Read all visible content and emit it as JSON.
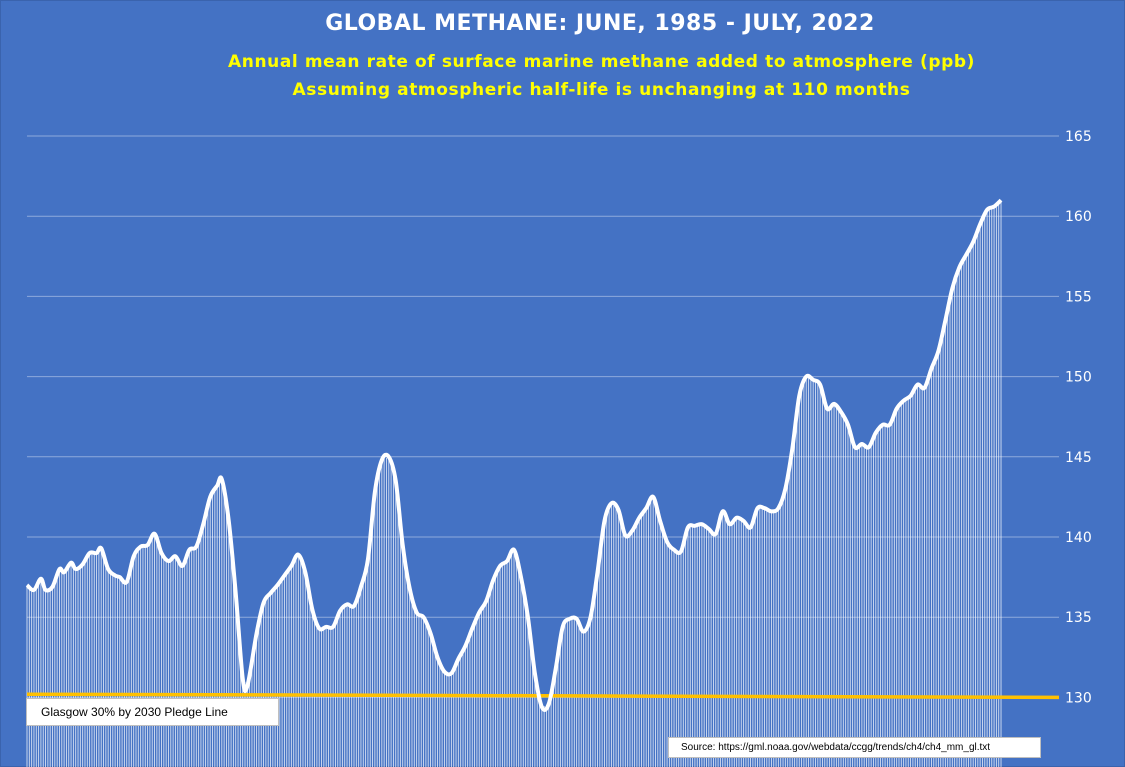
{
  "chart_data": {
    "type": "area",
    "title": "GLOBAL METHANE: JUNE, 1985 - JULY, 2022",
    "subtitle": "Annual mean rate of surface marine methane added to atmosphere (ppb)",
    "subtitle2": "Assuming atmospheric half-life is unchanging at 110 months",
    "xlabel": "",
    "ylabel": "",
    "x_start": "1985-06",
    "x_end": "2022-07",
    "ylim": [
      125,
      165
    ],
    "yticks": [
      130,
      135,
      140,
      145,
      150,
      155,
      160,
      165
    ],
    "grid": true,
    "series": [
      {
        "name": "",
        "color": "#ffffff",
        "points": [
          [
            "1985-06",
            137.0
          ],
          [
            "1985-09",
            136.7
          ],
          [
            "1985-12",
            137.4
          ],
          [
            "1986-02",
            136.7
          ],
          [
            "1986-05",
            136.9
          ],
          [
            "1986-08",
            138.0
          ],
          [
            "1986-10",
            137.8
          ],
          [
            "1987-01",
            138.4
          ],
          [
            "1987-03",
            138.0
          ],
          [
            "1987-06",
            138.3
          ],
          [
            "1987-09",
            139.0
          ],
          [
            "1987-12",
            139.0
          ],
          [
            "1988-02",
            139.3
          ],
          [
            "1988-05",
            138.0
          ],
          [
            "1988-08",
            137.6
          ],
          [
            "1988-10",
            137.5
          ],
          [
            "1989-01",
            137.2
          ],
          [
            "1989-04",
            138.8
          ],
          [
            "1989-07",
            139.4
          ],
          [
            "1989-10",
            139.5
          ],
          [
            "1990-01",
            140.2
          ],
          [
            "1990-04",
            139.0
          ],
          [
            "1990-07",
            138.5
          ],
          [
            "1990-10",
            138.8
          ],
          [
            "1991-01",
            138.2
          ],
          [
            "1991-04",
            139.2
          ],
          [
            "1991-07",
            139.4
          ],
          [
            "1991-10",
            140.8
          ],
          [
            "1992-01",
            142.5
          ],
          [
            "1992-04",
            143.2
          ],
          [
            "1992-06",
            143.6
          ],
          [
            "1992-09",
            141.0
          ],
          [
            "1992-12",
            136.5
          ],
          [
            "1993-03",
            131.2
          ],
          [
            "1993-05",
            130.7
          ],
          [
            "1993-09",
            134.0
          ],
          [
            "1993-12",
            135.9
          ],
          [
            "1994-03",
            136.5
          ],
          [
            "1994-06",
            137.0
          ],
          [
            "1994-09",
            137.6
          ],
          [
            "1994-12",
            138.2
          ],
          [
            "1995-03",
            138.9
          ],
          [
            "1995-06",
            137.8
          ],
          [
            "1995-09",
            135.5
          ],
          [
            "1995-12",
            134.3
          ],
          [
            "1996-03",
            134.4
          ],
          [
            "1996-06",
            134.4
          ],
          [
            "1996-09",
            135.4
          ],
          [
            "1996-12",
            135.8
          ],
          [
            "1997-03",
            135.7
          ],
          [
            "1997-06",
            136.9
          ],
          [
            "1997-09",
            138.6
          ],
          [
            "1997-12",
            142.8
          ],
          [
            "1998-03",
            144.8
          ],
          [
            "1998-06",
            145.0
          ],
          [
            "1998-09",
            143.5
          ],
          [
            "1998-12",
            139.5
          ],
          [
            "1999-03",
            136.8
          ],
          [
            "1999-06",
            135.3
          ],
          [
            "1999-09",
            135.0
          ],
          [
            "1999-12",
            134.0
          ],
          [
            "2000-03",
            132.5
          ],
          [
            "2000-06",
            131.6
          ],
          [
            "2000-09",
            131.5
          ],
          [
            "2000-12",
            132.4
          ],
          [
            "2001-03",
            133.2
          ],
          [
            "2001-06",
            134.3
          ],
          [
            "2001-09",
            135.3
          ],
          [
            "2001-12",
            136.0
          ],
          [
            "2002-03",
            137.3
          ],
          [
            "2002-06",
            138.2
          ],
          [
            "2002-09",
            138.5
          ],
          [
            "2002-12",
            139.2
          ],
          [
            "2003-03",
            137.5
          ],
          [
            "2003-06",
            135.0
          ],
          [
            "2003-09",
            131.5
          ],
          [
            "2003-12",
            129.4
          ],
          [
            "2004-03",
            129.6
          ],
          [
            "2004-06",
            131.8
          ],
          [
            "2004-09",
            134.4
          ],
          [
            "2004-12",
            134.9
          ],
          [
            "2005-03",
            134.9
          ],
          [
            "2005-06",
            134.1
          ],
          [
            "2005-09",
            135.0
          ],
          [
            "2005-12",
            137.8
          ],
          [
            "2006-03",
            141.0
          ],
          [
            "2006-06",
            142.1
          ],
          [
            "2006-09",
            141.7
          ],
          [
            "2006-12",
            140.1
          ],
          [
            "2007-03",
            140.4
          ],
          [
            "2007-06",
            141.2
          ],
          [
            "2007-09",
            141.8
          ],
          [
            "2007-12",
            142.5
          ],
          [
            "2008-03",
            141.0
          ],
          [
            "2008-06",
            139.7
          ],
          [
            "2008-09",
            139.2
          ],
          [
            "2008-12",
            139.1
          ],
          [
            "2009-03",
            140.6
          ],
          [
            "2009-06",
            140.7
          ],
          [
            "2009-09",
            140.8
          ],
          [
            "2009-12",
            140.5
          ],
          [
            "2010-03",
            140.2
          ],
          [
            "2010-06",
            141.6
          ],
          [
            "2010-09",
            140.8
          ],
          [
            "2010-12",
            141.2
          ],
          [
            "2011-03",
            141.0
          ],
          [
            "2011-06",
            140.6
          ],
          [
            "2011-09",
            141.8
          ],
          [
            "2011-12",
            141.8
          ],
          [
            "2012-03",
            141.6
          ],
          [
            "2012-06",
            141.8
          ],
          [
            "2012-09",
            143.0
          ],
          [
            "2012-12",
            145.5
          ],
          [
            "2013-03",
            148.8
          ],
          [
            "2013-06",
            150.0
          ],
          [
            "2013-09",
            149.8
          ],
          [
            "2013-12",
            149.5
          ],
          [
            "2014-03",
            148.0
          ],
          [
            "2014-06",
            148.3
          ],
          [
            "2014-09",
            147.8
          ],
          [
            "2014-12",
            147.0
          ],
          [
            "2015-03",
            145.6
          ],
          [
            "2015-06",
            145.8
          ],
          [
            "2015-09",
            145.6
          ],
          [
            "2015-12",
            146.5
          ],
          [
            "2016-03",
            147.0
          ],
          [
            "2016-06",
            147.0
          ],
          [
            "2016-09",
            148.0
          ],
          [
            "2016-12",
            148.5
          ],
          [
            "2017-03",
            148.8
          ],
          [
            "2017-06",
            149.5
          ],
          [
            "2017-09",
            149.3
          ],
          [
            "2017-12",
            150.5
          ],
          [
            "2018-03",
            151.6
          ],
          [
            "2018-06",
            153.5
          ],
          [
            "2018-09",
            155.5
          ],
          [
            "2018-12",
            156.8
          ],
          [
            "2019-03",
            157.6
          ],
          [
            "2019-06",
            158.4
          ],
          [
            "2019-09",
            159.5
          ],
          [
            "2019-12",
            160.4
          ],
          [
            "2020-03",
            160.6
          ],
          [
            "2020-06",
            161.0
          ],
          [
            "2022-07",
            161.0
          ]
        ]
      }
    ],
    "reference_line": {
      "label": "Glasgow 30% by 2030 Pledge Line",
      "y_start": 130.2,
      "y_end": 130.0,
      "color": "#ffc000"
    },
    "source_note": "Source: https://gml.noaa.gov/webdata/ccgg/trends/ch4/ch4_mm_gl.txt"
  }
}
